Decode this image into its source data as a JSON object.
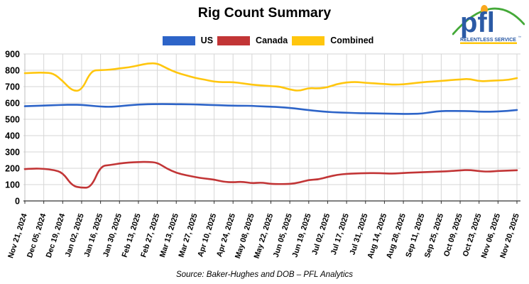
{
  "title": "Rig Count Summary",
  "logo": {
    "brand": "pfl",
    "tagline": "RELENTLESS SERVICE",
    "trademark": "™",
    "brand_color": "#2b5aa5",
    "arc_color": "#44a938",
    "dot_color": "#f9a81d",
    "underline_color": "#ffc60b"
  },
  "legend": [
    {
      "label": "US",
      "color": "#2d64c8"
    },
    {
      "label": "Canada",
      "color": "#c23536"
    },
    {
      "label": "Combined",
      "color": "#ffc60e"
    }
  ],
  "source_note": "Source: Baker-Hughes and DOB – PFL Analytics",
  "chart_data": {
    "type": "line",
    "title": "Rig Count Summary",
    "x_tick_labels": [
      "Nov 21, 2024",
      "Dec 05, 2024",
      "Dec 19, 2024",
      "Jan 02, 2025",
      "Jan 16, 2025",
      "Jan 30, 2025",
      "Feb 13, 2025",
      "Feb 27, 2025",
      "Mar 13, 2025",
      "Mar 27, 2025",
      "Apr 10, 2025",
      "Apr 24, 2025",
      "May 08, 2025",
      "May 22, 2025",
      "Jun 05, 2025",
      "Jun 19, 2025",
      "Jul 02, 2025",
      "Jul 17, 2025",
      "Jul 31, 2025",
      "Aug 14, 2025",
      "Aug 28, 2025",
      "Sep 11, 2025",
      "Sep 25, 2025",
      "Oct 09, 2025",
      "Oct 23, 2025",
      "Nov 06, 2025",
      "Nov 20, 2025"
    ],
    "points_per_label": 2,
    "frequency": "weekly",
    "ylim": [
      0,
      900
    ],
    "ytick_step": 100,
    "grid": true,
    "legend_position": "top",
    "series": [
      {
        "name": "US",
        "color": "#2d64c8",
        "values": [
          580,
          582,
          584,
          586,
          588,
          589,
          588,
          583,
          578,
          576,
          580,
          586,
          590,
          592,
          593,
          593,
          592,
          592,
          591,
          589,
          587,
          585,
          583,
          583,
          582,
          579,
          577,
          574,
          570,
          563,
          556,
          550,
          545,
          542,
          540,
          538,
          537,
          536,
          535,
          534,
          533,
          533,
          535,
          544,
          551,
          551,
          551,
          550,
          547,
          546,
          548,
          551,
          557
        ]
      },
      {
        "name": "Canada",
        "color": "#c23536",
        "values": [
          195,
          199,
          197,
          190,
          174,
          92,
          80,
          83,
          213,
          220,
          229,
          235,
          238,
          239,
          235,
          198,
          172,
          158,
          146,
          137,
          131,
          117,
          114,
          118,
          108,
          113,
          104,
          103,
          104,
          112,
          129,
          131,
          147,
          160,
          166,
          168,
          170,
          171,
          169,
          167,
          171,
          174,
          176,
          178,
          180,
          183,
          187,
          190,
          182,
          179,
          184,
          185,
          188
        ]
      },
      {
        "name": "Combined",
        "color": "#ffc60e",
        "values": [
          782,
          785,
          786,
          782,
          735,
          674,
          676,
          798,
          801,
          803,
          812,
          818,
          830,
          842,
          843,
          812,
          786,
          770,
          753,
          743,
          730,
          727,
          728,
          720,
          712,
          707,
          703,
          700,
          682,
          673,
          692,
          688,
          696,
          716,
          726,
          729,
          723,
          720,
          716,
          712,
          714,
          720,
          727,
          731,
          735,
          740,
          744,
          748,
          732,
          735,
          738,
          740,
          752
        ]
      }
    ]
  }
}
